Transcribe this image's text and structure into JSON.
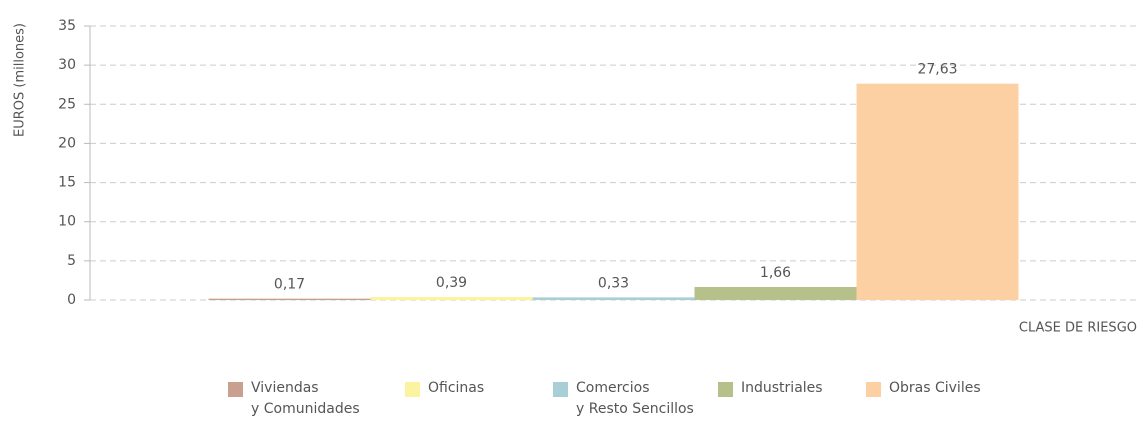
{
  "chart_data": {
    "type": "bar",
    "y_label": "EUROS (millones)",
    "x_label": "CLASE DE RIESGO",
    "ylim": [
      0,
      35
    ],
    "yticks": [
      0,
      5,
      10,
      15,
      20,
      25,
      30,
      35
    ],
    "grid": true,
    "series": [
      {
        "name": "Viviendas\ny Comunidades",
        "color": "#c9a08f",
        "values": [
          0.17
        ],
        "value_labels": [
          "0,17"
        ]
      },
      {
        "name": "Oficinas",
        "color": "#fbf3a0",
        "values": [
          0.39
        ],
        "value_labels": [
          "0,39"
        ]
      },
      {
        "name": "Comercios\ny Resto Sencillos",
        "color": "#a8cfd5",
        "values": [
          0.33
        ],
        "value_labels": [
          "0,33"
        ]
      },
      {
        "name": "Industriales",
        "color": "#b5c08a",
        "values": [
          1.66
        ],
        "value_labels": [
          "1,66"
        ]
      },
      {
        "name": "Obras Civiles",
        "color": "#fcd0a3",
        "values": [
          27.63
        ],
        "value_labels": [
          "27,63"
        ]
      }
    ]
  }
}
